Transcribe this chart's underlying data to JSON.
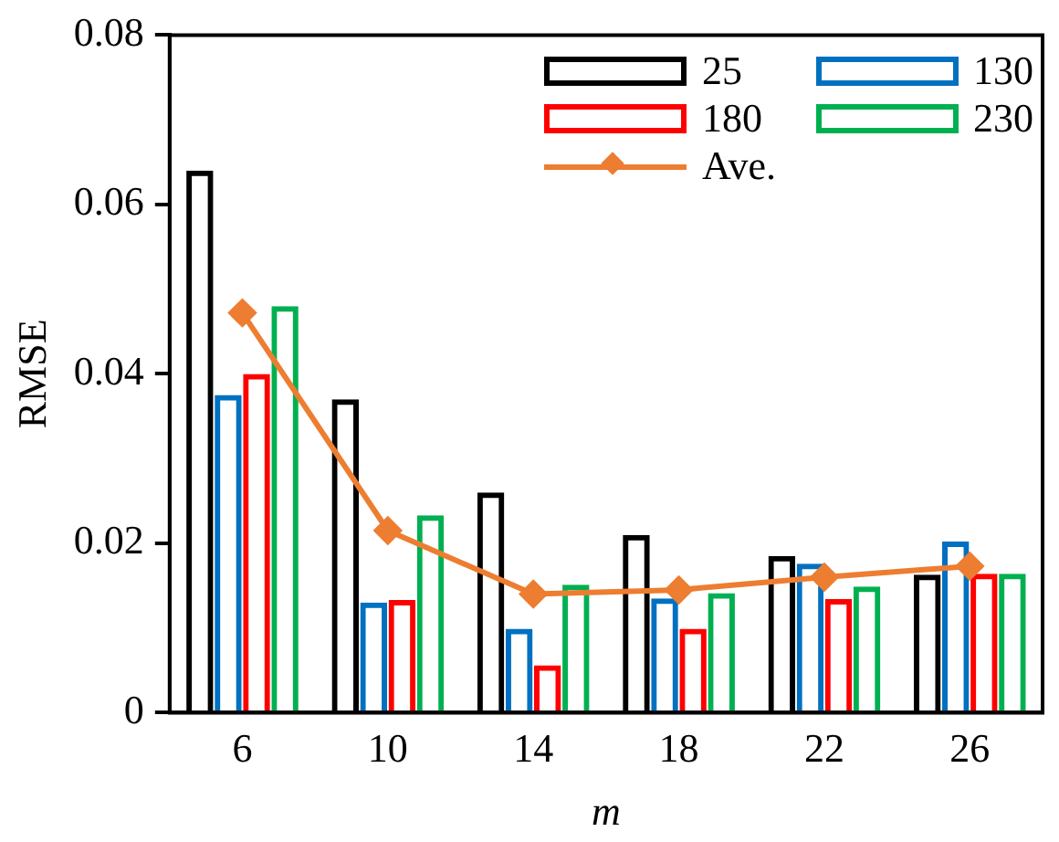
{
  "chart_data": {
    "type": "bar",
    "xlabel": "m",
    "ylabel": "RMSE",
    "categories": [
      "6",
      "10",
      "14",
      "18",
      "22",
      "26"
    ],
    "series": [
      {
        "name": "25",
        "color": "#000000",
        "values": [
          0.064,
          0.037,
          0.026,
          0.021,
          0.0185,
          0.0163
        ]
      },
      {
        "name": "130",
        "color": "#0070c0",
        "values": [
          0.0375,
          0.013,
          0.0099,
          0.0135,
          0.0176,
          0.0202
        ]
      },
      {
        "name": "180",
        "color": "#ff0000",
        "values": [
          0.04,
          0.0133,
          0.0056,
          0.0099,
          0.0134,
          0.0164
        ]
      },
      {
        "name": "230",
        "color": "#00b050",
        "values": [
          0.048,
          0.0233,
          0.0151,
          0.0141,
          0.0149,
          0.0164
        ]
      },
      {
        "name": "Ave.",
        "type": "line",
        "color": "#ed7d31",
        "values": [
          0.0472,
          0.0215,
          0.014,
          0.0145,
          0.016,
          0.0173
        ],
        "marker": "diamond"
      }
    ],
    "ylim": [
      0,
      0.08
    ],
    "yticks": [
      0,
      0.02,
      0.04,
      0.06,
      0.08
    ],
    "grid": false,
    "legend": "top right"
  }
}
